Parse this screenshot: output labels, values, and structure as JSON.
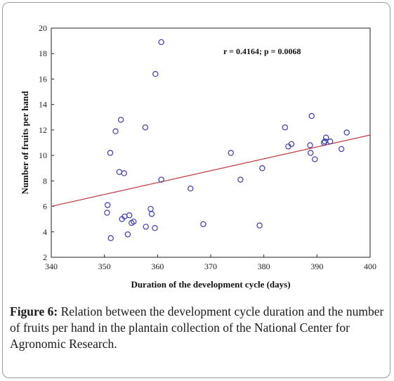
{
  "figure": {
    "caption_label": "Figure 6:",
    "caption_text": " Relation between the development cycle duration and the number of fruits per hand in the plantain collection of the National Center for Agronomic Research."
  },
  "chart_data": {
    "type": "scatter",
    "title": "",
    "xlabel": "Duration of the development cycle (days)",
    "ylabel": "Number of fruits per hand",
    "xlim": [
      340,
      400
    ],
    "ylim": [
      2,
      20
    ],
    "x_ticks": [
      340,
      350,
      360,
      370,
      380,
      390,
      400
    ],
    "y_ticks": [
      2,
      4,
      6,
      8,
      10,
      12,
      14,
      16,
      18,
      20
    ],
    "grid": false,
    "annotation": "r = 0.4164; p = 0.0068",
    "marker_color": "#3b3bb0",
    "line_color": "#c0393b",
    "regression_line": {
      "x": [
        340,
        400
      ],
      "y": [
        6.0,
        11.6
      ]
    },
    "points": [
      {
        "x": 350.6,
        "y": 6.1
      },
      {
        "x": 350.5,
        "y": 5.5
      },
      {
        "x": 351.1,
        "y": 10.2
      },
      {
        "x": 351.2,
        "y": 3.5
      },
      {
        "x": 352.1,
        "y": 11.9
      },
      {
        "x": 352.8,
        "y": 8.7
      },
      {
        "x": 353.1,
        "y": 12.8
      },
      {
        "x": 353.3,
        "y": 5.0
      },
      {
        "x": 353.7,
        "y": 8.6
      },
      {
        "x": 353.8,
        "y": 5.2
      },
      {
        "x": 354.4,
        "y": 3.8
      },
      {
        "x": 354.7,
        "y": 5.3
      },
      {
        "x": 355.1,
        "y": 4.7
      },
      {
        "x": 355.5,
        "y": 4.8
      },
      {
        "x": 357.7,
        "y": 12.2
      },
      {
        "x": 357.8,
        "y": 4.4
      },
      {
        "x": 358.7,
        "y": 5.8
      },
      {
        "x": 358.9,
        "y": 5.4
      },
      {
        "x": 359.5,
        "y": 4.3
      },
      {
        "x": 359.6,
        "y": 16.4
      },
      {
        "x": 360.7,
        "y": 8.1
      },
      {
        "x": 360.7,
        "y": 18.9
      },
      {
        "x": 366.2,
        "y": 7.4
      },
      {
        "x": 368.6,
        "y": 4.6
      },
      {
        "x": 373.8,
        "y": 10.2
      },
      {
        "x": 375.6,
        "y": 8.1
      },
      {
        "x": 379.2,
        "y": 4.5
      },
      {
        "x": 379.7,
        "y": 9.0
      },
      {
        "x": 384.0,
        "y": 12.2
      },
      {
        "x": 384.6,
        "y": 10.7
      },
      {
        "x": 385.2,
        "y": 10.9
      },
      {
        "x": 388.7,
        "y": 10.8
      },
      {
        "x": 388.8,
        "y": 10.2
      },
      {
        "x": 389.0,
        "y": 13.1
      },
      {
        "x": 389.6,
        "y": 9.7
      },
      {
        "x": 391.3,
        "y": 11.0
      },
      {
        "x": 391.5,
        "y": 11.1
      },
      {
        "x": 391.7,
        "y": 11.4
      },
      {
        "x": 392.5,
        "y": 11.1
      },
      {
        "x": 394.6,
        "y": 10.5
      },
      {
        "x": 395.6,
        "y": 11.8
      }
    ]
  }
}
